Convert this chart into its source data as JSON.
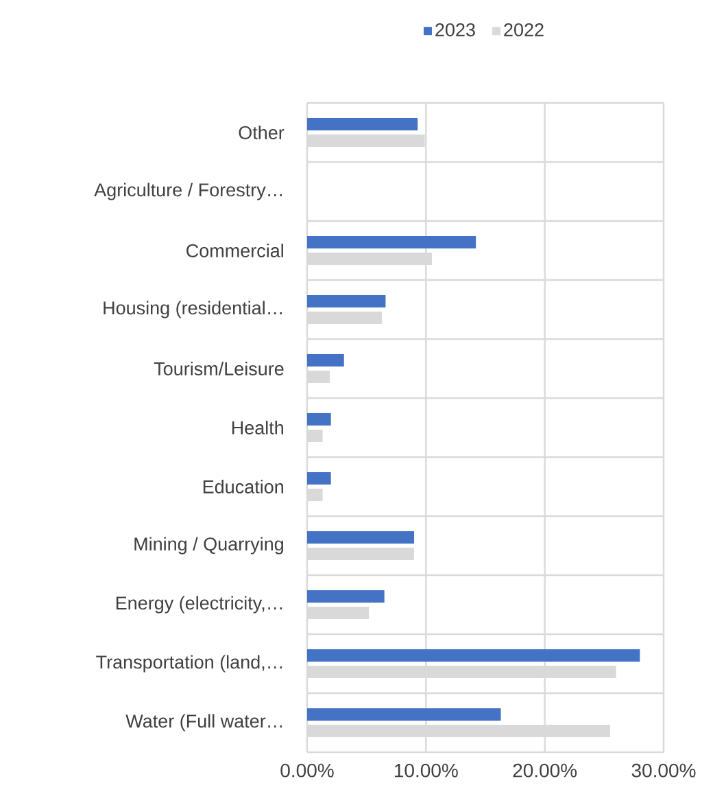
{
  "chart_data": {
    "type": "bar",
    "orientation": "horizontal",
    "categories": [
      "Other",
      "Agriculture / Forestry…",
      "Commercial",
      "Housing (residential…",
      "Tourism/Leisure",
      "Health",
      "Education",
      "Mining / Quarrying",
      "Energy (electricity,…",
      "Transportation (land,…",
      "Water (Full water…"
    ],
    "series": [
      {
        "name": "2023",
        "color": "#4472c4",
        "values": [
          9.3,
          0,
          14.2,
          6.6,
          3.1,
          2.0,
          2.0,
          9.0,
          6.5,
          28.0,
          16.3
        ]
      },
      {
        "name": "2022",
        "color": "#d9d9d9",
        "values": [
          9.9,
          0,
          10.5,
          6.3,
          1.9,
          1.3,
          1.3,
          9.0,
          5.2,
          26.0,
          25.5
        ]
      }
    ],
    "xlim": [
      0,
      30
    ],
    "xticks": [
      {
        "value": 0,
        "label": "0.00%"
      },
      {
        "value": 10,
        "label": "10.00%"
      },
      {
        "value": 20,
        "label": "20.00%"
      },
      {
        "value": 30,
        "label": "30.00%"
      }
    ],
    "grid": true,
    "legend": "top"
  }
}
